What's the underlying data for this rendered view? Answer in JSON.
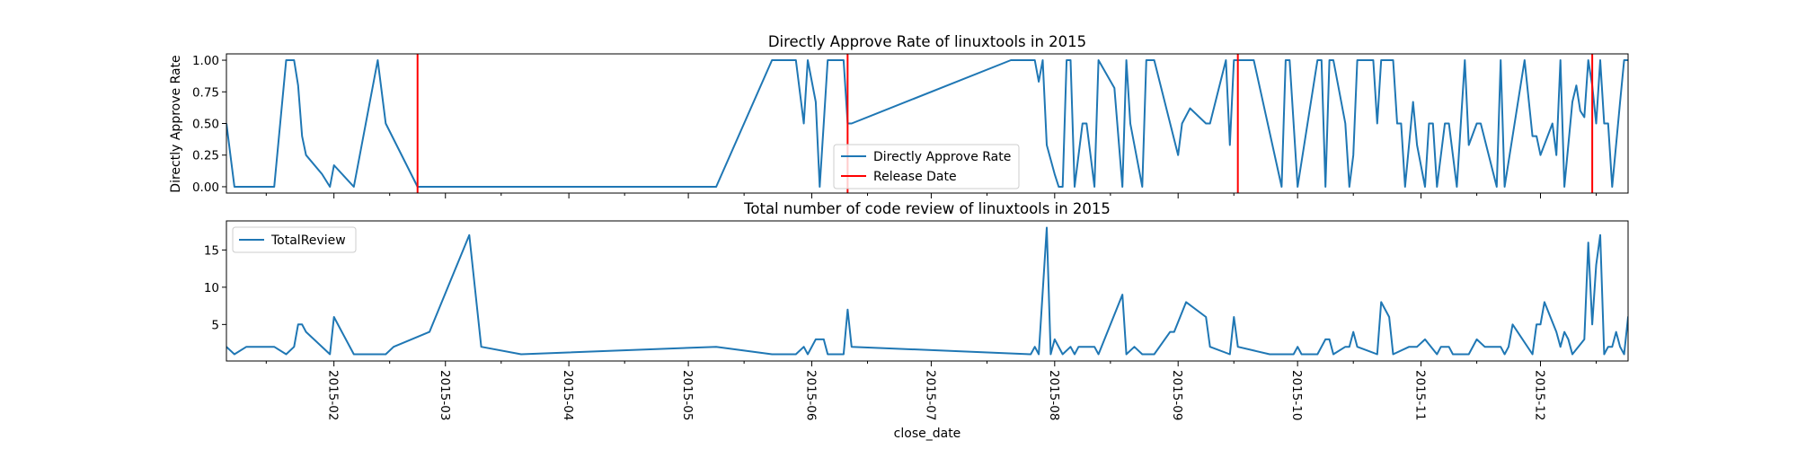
{
  "chart_data": [
    {
      "type": "line",
      "title": "Directly Approve Rate of linuxtools in 2015",
      "ylabel": "Directly Approve Rate",
      "xlabel": "",
      "xlim": [
        "2015-01-05",
        "2015-12-23"
      ],
      "ylim": [
        -0.05,
        1.05
      ],
      "yticks": [
        "0.00",
        "0.25",
        "0.50",
        "0.75",
        "1.00"
      ],
      "legend_position": "bottom-center",
      "grid": false,
      "series": [
        {
          "name": "Directly Approve Rate",
          "color": "#1f77b4",
          "points": [
            [
              "2015-01-05",
              0.5
            ],
            [
              "2015-01-07",
              0.0
            ],
            [
              "2015-01-10",
              0.0
            ],
            [
              "2015-01-14",
              0.0
            ],
            [
              "2015-01-17",
              0.0
            ],
            [
              "2015-01-20",
              1.0
            ],
            [
              "2015-01-22",
              1.0
            ],
            [
              "2015-01-23",
              0.8
            ],
            [
              "2015-01-24",
              0.4
            ],
            [
              "2015-01-25",
              0.25
            ],
            [
              "2015-01-29",
              0.1
            ],
            [
              "2015-01-31",
              0.0
            ],
            [
              "2015-02-01",
              0.17
            ],
            [
              "2015-02-06",
              0.0
            ],
            [
              "2015-02-12",
              1.0
            ],
            [
              "2015-02-14",
              0.5
            ],
            [
              "2015-02-22",
              0.0
            ],
            [
              "2015-03-01",
              0.0
            ],
            [
              "2015-05-08",
              0.0
            ],
            [
              "2015-05-22",
              1.0
            ],
            [
              "2015-05-25",
              1.0
            ],
            [
              "2015-05-28",
              1.0
            ],
            [
              "2015-05-30",
              0.5
            ],
            [
              "2015-05-31",
              1.0
            ],
            [
              "2015-06-02",
              0.67
            ],
            [
              "2015-06-03",
              0.0
            ],
            [
              "2015-06-04",
              0.5
            ],
            [
              "2015-06-05",
              1.0
            ],
            [
              "2015-06-07",
              1.0
            ],
            [
              "2015-06-09",
              1.0
            ],
            [
              "2015-06-10",
              0.5
            ],
            [
              "2015-06-11",
              0.5
            ],
            [
              "2015-07-21",
              1.0
            ],
            [
              "2015-07-27",
              1.0
            ],
            [
              "2015-07-28",
              0.83
            ],
            [
              "2015-07-29",
              1.0
            ],
            [
              "2015-07-30",
              0.33
            ],
            [
              "2015-08-01",
              0.1
            ],
            [
              "2015-08-02",
              0.0
            ],
            [
              "2015-08-03",
              0.0
            ],
            [
              "2015-08-04",
              1.0
            ],
            [
              "2015-08-05",
              1.0
            ],
            [
              "2015-08-06",
              0.0
            ],
            [
              "2015-08-08",
              0.5
            ],
            [
              "2015-08-09",
              0.5
            ],
            [
              "2015-08-11",
              0.0
            ],
            [
              "2015-08-12",
              1.0
            ],
            [
              "2015-08-16",
              0.78
            ],
            [
              "2015-08-18",
              0.0
            ],
            [
              "2015-08-19",
              1.0
            ],
            [
              "2015-08-20",
              0.5
            ],
            [
              "2015-08-23",
              0.0
            ],
            [
              "2015-08-24",
              1.0
            ],
            [
              "2015-08-26",
              1.0
            ],
            [
              "2015-09-01",
              0.25
            ],
            [
              "2015-09-02",
              0.5
            ],
            [
              "2015-09-04",
              0.62
            ],
            [
              "2015-09-08",
              0.5
            ],
            [
              "2015-09-09",
              0.5
            ],
            [
              "2015-09-13",
              1.0
            ],
            [
              "2015-09-14",
              0.33
            ],
            [
              "2015-09-15",
              1.0
            ],
            [
              "2015-09-20",
              1.0
            ],
            [
              "2015-09-27",
              0.0
            ],
            [
              "2015-09-28",
              1.0
            ],
            [
              "2015-09-29",
              1.0
            ],
            [
              "2015-10-01",
              0.0
            ],
            [
              "2015-10-06",
              1.0
            ],
            [
              "2015-10-07",
              1.0
            ],
            [
              "2015-10-08",
              0.0
            ],
            [
              "2015-10-09",
              1.0
            ],
            [
              "2015-10-10",
              1.0
            ],
            [
              "2015-10-13",
              0.5
            ],
            [
              "2015-10-14",
              0.0
            ],
            [
              "2015-10-15",
              0.25
            ],
            [
              "2015-10-16",
              1.0
            ],
            [
              "2015-10-20",
              1.0
            ],
            [
              "2015-10-21",
              0.5
            ],
            [
              "2015-10-22",
              1.0
            ],
            [
              "2015-10-25",
              1.0
            ],
            [
              "2015-10-26",
              0.5
            ],
            [
              "2015-10-27",
              0.5
            ],
            [
              "2015-10-28",
              0.0
            ],
            [
              "2015-10-30",
              0.67
            ],
            [
              "2015-10-31",
              0.33
            ],
            [
              "2015-11-02",
              0.0
            ],
            [
              "2015-11-03",
              0.5
            ],
            [
              "2015-11-04",
              0.5
            ],
            [
              "2015-11-05",
              0.0
            ],
            [
              "2015-11-07",
              0.5
            ],
            [
              "2015-11-08",
              0.5
            ],
            [
              "2015-11-10",
              0.0
            ],
            [
              "2015-11-12",
              1.0
            ],
            [
              "2015-11-13",
              0.33
            ],
            [
              "2015-11-15",
              0.5
            ],
            [
              "2015-11-16",
              0.5
            ],
            [
              "2015-11-18",
              0.25
            ],
            [
              "2015-11-20",
              0.0
            ],
            [
              "2015-11-21",
              1.0
            ],
            [
              "2015-11-22",
              0.0
            ],
            [
              "2015-11-27",
              1.0
            ],
            [
              "2015-11-29",
              0.4
            ],
            [
              "2015-11-30",
              0.4
            ],
            [
              "2015-12-01",
              0.25
            ],
            [
              "2015-12-04",
              0.5
            ],
            [
              "2015-12-05",
              0.25
            ],
            [
              "2015-12-06",
              1.0
            ],
            [
              "2015-12-07",
              0.0
            ],
            [
              "2015-12-09",
              0.67
            ],
            [
              "2015-12-10",
              0.8
            ],
            [
              "2015-12-11",
              0.6
            ],
            [
              "2015-12-12",
              0.55
            ],
            [
              "2015-12-13",
              1.0
            ],
            [
              "2015-12-14",
              0.8
            ],
            [
              "2015-12-15",
              0.5
            ],
            [
              "2015-12-16",
              1.0
            ],
            [
              "2015-12-17",
              0.5
            ],
            [
              "2015-12-18",
              0.5
            ],
            [
              "2015-12-19",
              0.0
            ],
            [
              "2015-12-21",
              0.67
            ],
            [
              "2015-12-22",
              1.0
            ],
            [
              "2015-12-23",
              1.0
            ]
          ]
        },
        {
          "name": "Release Date",
          "type": "vlines",
          "color": "#ff0000",
          "x": [
            "2015-02-22",
            "2015-06-10",
            "2015-09-16",
            "2015-12-14"
          ]
        }
      ]
    },
    {
      "type": "line",
      "title": "Total number of code review of linuxtools in 2015",
      "xlabel": "close_date",
      "ylabel": "",
      "xlim": [
        "2015-01-05",
        "2015-12-23"
      ],
      "ylim": [
        0.1,
        18.9
      ],
      "yticks": [
        "5",
        "10",
        "15"
      ],
      "xticks": [
        "2015-02",
        "2015-03",
        "2015-04",
        "2015-05",
        "2015-06",
        "2015-07",
        "2015-08",
        "2015-09",
        "2015-10",
        "2015-11",
        "2015-12"
      ],
      "legend_position": "top-left",
      "grid": false,
      "series": [
        {
          "name": "TotalReview",
          "color": "#1f77b4",
          "points": [
            [
              "2015-01-05",
              2
            ],
            [
              "2015-01-07",
              1
            ],
            [
              "2015-01-10",
              2
            ],
            [
              "2015-01-17",
              2
            ],
            [
              "2015-01-20",
              1
            ],
            [
              "2015-01-22",
              2
            ],
            [
              "2015-01-23",
              5
            ],
            [
              "2015-01-24",
              5
            ],
            [
              "2015-01-25",
              4
            ],
            [
              "2015-01-31",
              1
            ],
            [
              "2015-02-01",
              6
            ],
            [
              "2015-02-03",
              4
            ],
            [
              "2015-02-06",
              1
            ],
            [
              "2015-02-14",
              1
            ],
            [
              "2015-02-16",
              2
            ],
            [
              "2015-02-25",
              4
            ],
            [
              "2015-03-07",
              17
            ],
            [
              "2015-03-10",
              2
            ],
            [
              "2015-03-20",
              1
            ],
            [
              "2015-05-08",
              2
            ],
            [
              "2015-05-22",
              1
            ],
            [
              "2015-05-28",
              1
            ],
            [
              "2015-05-30",
              2
            ],
            [
              "2015-05-31",
              1
            ],
            [
              "2015-06-02",
              3
            ],
            [
              "2015-06-04",
              3
            ],
            [
              "2015-06-05",
              1
            ],
            [
              "2015-06-09",
              1
            ],
            [
              "2015-06-10",
              7
            ],
            [
              "2015-06-11",
              2
            ],
            [
              "2015-07-26",
              1
            ],
            [
              "2015-07-27",
              2
            ],
            [
              "2015-07-28",
              1
            ],
            [
              "2015-07-30",
              18
            ],
            [
              "2015-07-31",
              1
            ],
            [
              "2015-08-01",
              3
            ],
            [
              "2015-08-03",
              1
            ],
            [
              "2015-08-05",
              2
            ],
            [
              "2015-08-06",
              1
            ],
            [
              "2015-08-07",
              2
            ],
            [
              "2015-08-11",
              2
            ],
            [
              "2015-08-12",
              1
            ],
            [
              "2015-08-18",
              9
            ],
            [
              "2015-08-19",
              1
            ],
            [
              "2015-08-21",
              2
            ],
            [
              "2015-08-23",
              1
            ],
            [
              "2015-08-26",
              1
            ],
            [
              "2015-08-30",
              4
            ],
            [
              "2015-08-31",
              4
            ],
            [
              "2015-09-03",
              8
            ],
            [
              "2015-09-08",
              6
            ],
            [
              "2015-09-09",
              2
            ],
            [
              "2015-09-14",
              1
            ],
            [
              "2015-09-15",
              6
            ],
            [
              "2015-09-16",
              2
            ],
            [
              "2015-09-24",
              1
            ],
            [
              "2015-09-30",
              1
            ],
            [
              "2015-10-01",
              2
            ],
            [
              "2015-10-02",
              1
            ],
            [
              "2015-10-06",
              1
            ],
            [
              "2015-10-08",
              3
            ],
            [
              "2015-10-09",
              3
            ],
            [
              "2015-10-10",
              1
            ],
            [
              "2015-10-13",
              2
            ],
            [
              "2015-10-14",
              2
            ],
            [
              "2015-10-15",
              4
            ],
            [
              "2015-10-16",
              2
            ],
            [
              "2015-10-21",
              1
            ],
            [
              "2015-10-22",
              8
            ],
            [
              "2015-10-24",
              6
            ],
            [
              "2015-10-25",
              1
            ],
            [
              "2015-10-29",
              2
            ],
            [
              "2015-10-31",
              2
            ],
            [
              "2015-11-02",
              3
            ],
            [
              "2015-11-05",
              1
            ],
            [
              "2015-11-06",
              2
            ],
            [
              "2015-11-08",
              2
            ],
            [
              "2015-11-09",
              1
            ],
            [
              "2015-11-13",
              1
            ],
            [
              "2015-11-15",
              3
            ],
            [
              "2015-11-17",
              2
            ],
            [
              "2015-11-21",
              2
            ],
            [
              "2015-11-22",
              1
            ],
            [
              "2015-11-23",
              2
            ],
            [
              "2015-11-24",
              5
            ],
            [
              "2015-11-29",
              1
            ],
            [
              "2015-11-30",
              5
            ],
            [
              "2015-12-01",
              5
            ],
            [
              "2015-12-02",
              8
            ],
            [
              "2015-12-05",
              4
            ],
            [
              "2015-12-06",
              2
            ],
            [
              "2015-12-07",
              4
            ],
            [
              "2015-12-08",
              3
            ],
            [
              "2015-12-09",
              1
            ],
            [
              "2015-12-12",
              3
            ],
            [
              "2015-12-13",
              16
            ],
            [
              "2015-12-14",
              5
            ],
            [
              "2015-12-15",
              13
            ],
            [
              "2015-12-16",
              17
            ],
            [
              "2015-12-17",
              1
            ],
            [
              "2015-12-18",
              2
            ],
            [
              "2015-12-19",
              2
            ],
            [
              "2015-12-20",
              4
            ],
            [
              "2015-12-21",
              2
            ],
            [
              "2015-12-22",
              1
            ],
            [
              "2015-12-23",
              6
            ],
            [
              "2015-12-24",
              1
            ]
          ]
        }
      ]
    }
  ]
}
